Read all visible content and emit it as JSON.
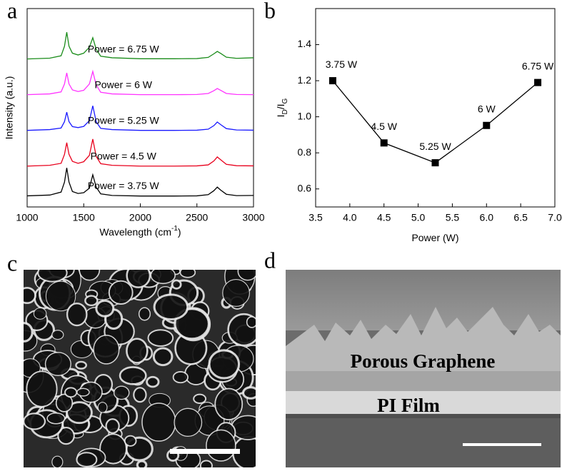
{
  "panels": {
    "labels": [
      "a",
      "b",
      "c",
      "d"
    ]
  },
  "images": {
    "d_labels": [
      "Porous Graphene",
      "PI Film"
    ]
  },
  "chart_data": [
    {
      "type": "line",
      "panel": "a",
      "xlabel": [
        "Wavelength (cm",
        "-1",
        ")"
      ],
      "ylabel": "Intensity (a.u.)",
      "xlim": [
        1000,
        3000
      ],
      "xticks": [
        1000,
        1500,
        2000,
        2500,
        3000
      ],
      "ylim": [
        0,
        10
      ],
      "x": [
        1000,
        1200,
        1300,
        1330,
        1350,
        1370,
        1400,
        1450,
        1500,
        1550,
        1580,
        1610,
        1650,
        1750,
        2000,
        2300,
        2500,
        2600,
        2650,
        2680,
        2710,
        2760,
        2850,
        3000
      ],
      "series": [
        {
          "name": "Power = 3.75 W",
          "color": "#000000",
          "values": [
            0.56,
            0.6,
            0.75,
            1.25,
            1.97,
            1.25,
            0.78,
            0.68,
            0.72,
            0.95,
            1.62,
            1.0,
            0.66,
            0.58,
            0.55,
            0.55,
            0.56,
            0.62,
            0.82,
            1.0,
            0.85,
            0.64,
            0.57,
            0.58
          ]
        },
        {
          "name": "Power = 4.5 W",
          "color": "#e8001c",
          "values": [
            2.06,
            2.1,
            2.2,
            2.65,
            3.24,
            2.65,
            2.3,
            2.2,
            2.28,
            2.6,
            3.42,
            2.55,
            2.18,
            2.1,
            2.06,
            2.06,
            2.07,
            2.12,
            2.32,
            2.52,
            2.38,
            2.15,
            2.08,
            2.07
          ]
        },
        {
          "name": "Power = 5.25 W",
          "color": "#1a1aff",
          "values": [
            3.86,
            3.9,
            3.98,
            4.3,
            4.78,
            4.3,
            4.05,
            4.0,
            4.06,
            4.35,
            5.1,
            4.3,
            3.96,
            3.9,
            3.86,
            3.86,
            3.87,
            3.92,
            4.1,
            4.28,
            4.15,
            3.95,
            3.88,
            3.87
          ]
        },
        {
          "name": "Power = 6 W",
          "color": "#ff33ff",
          "values": [
            5.66,
            5.7,
            5.8,
            6.2,
            6.76,
            6.2,
            5.9,
            5.82,
            5.88,
            6.2,
            6.83,
            6.15,
            5.78,
            5.7,
            5.66,
            5.66,
            5.67,
            5.72,
            5.86,
            5.97,
            5.88,
            5.72,
            5.67,
            5.66
          ]
        },
        {
          "name": "Power = 6.75 W",
          "color": "#1a8c1a",
          "values": [
            7.46,
            7.5,
            7.62,
            8.1,
            8.81,
            8.1,
            7.75,
            7.66,
            7.75,
            8.05,
            8.53,
            7.95,
            7.6,
            7.52,
            7.47,
            7.47,
            7.48,
            7.54,
            7.72,
            7.84,
            7.74,
            7.55,
            7.49,
            7.52
          ]
        }
      ]
    },
    {
      "type": "line",
      "panel": "b",
      "marker": "square",
      "xlabel": [
        "Power (W)"
      ],
      "ylabel": [
        "I",
        "D",
        "/I",
        "G"
      ],
      "xlim": [
        3.5,
        7.0
      ],
      "xticks": [
        3.5,
        {
          "value": 4,
          "label": "4.0"
        },
        4.5,
        {
          "value": 5,
          "label": "5.0"
        },
        5.5,
        {
          "value": 6,
          "label": "6.0"
        },
        6.5,
        {
          "value": 7,
          "label": "7.0"
        }
      ],
      "ylim": [
        0.5,
        1.6
      ],
      "yticks": [
        0.6,
        0.8,
        {
          "value": 1,
          "label": "1.0"
        },
        1.2,
        1.4
      ],
      "x": [
        3.75,
        4.5,
        5.25,
        6.0,
        6.75
      ],
      "point_labels": [
        "3.75 W",
        "4.5 W",
        "5.25 W",
        "6 W",
        "6.75 W"
      ],
      "series": [
        {
          "color": "#000000",
          "values": [
            1.2,
            0.855,
            0.745,
            0.952,
            1.19
          ]
        }
      ]
    }
  ]
}
